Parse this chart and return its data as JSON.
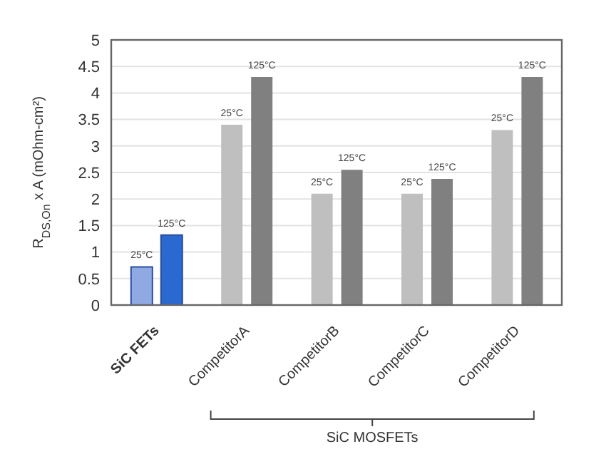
{
  "chart_data": {
    "type": "bar",
    "ylabel": "R$_{DS,On}$ x A (mOhm-cm²)",
    "categories": [
      "SiC FETs",
      "CompetitorA",
      "CompetitorB",
      "CompetitorC",
      "CompetitorD"
    ],
    "series": [
      {
        "name": "25°C",
        "colors": [
          "#8faae3",
          "#bfbfbf",
          "#bfbfbf",
          "#bfbfbf",
          "#bfbfbf"
        ],
        "values": [
          0.72,
          3.4,
          2.1,
          2.1,
          3.3
        ]
      },
      {
        "name": "125°C",
        "colors": [
          "#2a6ad0",
          "#808080",
          "#808080",
          "#808080",
          "#808080"
        ],
        "values": [
          1.32,
          4.3,
          2.55,
          2.38,
          4.3
        ]
      }
    ],
    "ylim": [
      0,
      5
    ],
    "yticks": [
      0,
      0.5,
      1,
      1.5,
      2,
      2.5,
      3,
      3.5,
      4,
      4.5,
      5
    ],
    "grid": "y",
    "legend": false,
    "annotations": [
      "SiC MOSFETs"
    ]
  }
}
